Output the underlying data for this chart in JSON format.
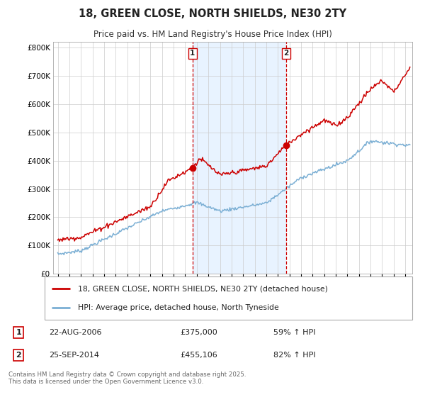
{
  "title": "18, GREEN CLOSE, NORTH SHIELDS, NE30 2TY",
  "subtitle": "Price paid vs. HM Land Registry's House Price Index (HPI)",
  "footer": "Contains HM Land Registry data © Crown copyright and database right 2025.\nThis data is licensed under the Open Government Licence v3.0.",
  "legend_entries": [
    "18, GREEN CLOSE, NORTH SHIELDS, NE30 2TY (detached house)",
    "HPI: Average price, detached house, North Tyneside"
  ],
  "sale_color": "#cc0000",
  "hpi_color": "#7bafd4",
  "annotation1_label": "1",
  "annotation1_date": "22-AUG-2006",
  "annotation1_price": "£375,000",
  "annotation1_pct": "59% ↑ HPI",
  "annotation2_label": "2",
  "annotation2_date": "25-SEP-2014",
  "annotation2_price": "£455,106",
  "annotation2_pct": "82% ↑ HPI",
  "ylim": [
    0,
    820000
  ],
  "yticks": [
    0,
    100000,
    200000,
    300000,
    400000,
    500000,
    600000,
    700000,
    800000
  ],
  "ytick_labels": [
    "£0",
    "£100K",
    "£200K",
    "£300K",
    "£400K",
    "£500K",
    "£600K",
    "£700K",
    "£800K"
  ],
  "xlim_start": 1994.6,
  "xlim_end": 2025.6,
  "bg_color": "#ffffff",
  "plot_bg_color": "#ffffff",
  "shaded_region_color": "#ddeeff",
  "grid_color": "#cccccc",
  "vline1_x": 2006.64,
  "vline2_x": 2014.73,
  "marker1_y": 375000,
  "marker2_y": 455106
}
